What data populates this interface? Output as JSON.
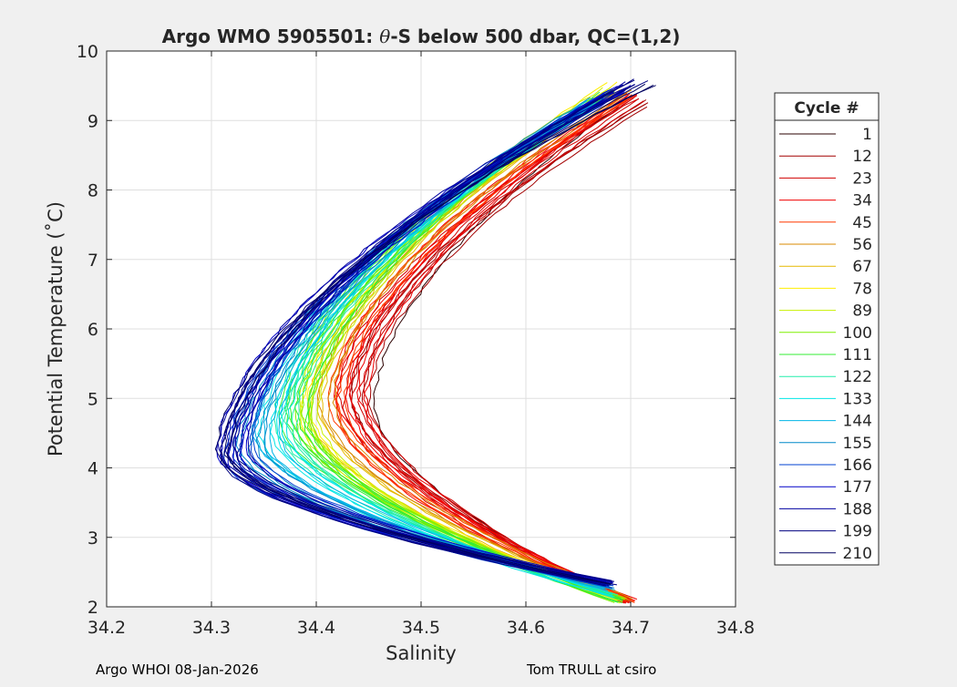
{
  "chart_data": {
    "type": "line",
    "title_prefix": "Argo WMO 5905501: ",
    "title_theta": "θ",
    "title_suffix": "-S below 500 dbar,  QC=(1,2)",
    "xlabel": "Salinity",
    "ylabel": "Potential Temperature (˚C)",
    "xlim": [
      34.2,
      34.8
    ],
    "ylim": [
      2,
      10
    ],
    "xticks": [
      34.2,
      34.3,
      34.4,
      34.5,
      34.6,
      34.7,
      34.8
    ],
    "xtick_labels": [
      "34.2",
      "34.3",
      "34.4",
      "34.5",
      "34.6",
      "34.7",
      "34.8"
    ],
    "yticks": [
      2,
      3,
      4,
      5,
      6,
      7,
      8,
      9,
      10
    ],
    "ytick_labels": [
      "2",
      "3",
      "4",
      "5",
      "6",
      "7",
      "8",
      "9",
      "10"
    ],
    "grid": true,
    "legend_position": "right",
    "legend": {
      "title": "Cycle #",
      "entries": [
        {
          "label": "1",
          "color": "#2b0000"
        },
        {
          "label": "12",
          "color": "#a30000"
        },
        {
          "label": "23",
          "color": "#d10000"
        },
        {
          "label": "34",
          "color": "#f00000"
        },
        {
          "label": "45",
          "color": "#ff3a00"
        },
        {
          "label": "56",
          "color": "#d88a00"
        },
        {
          "label": "67",
          "color": "#e6b800"
        },
        {
          "label": "78",
          "color": "#ffee00"
        },
        {
          "label": "89",
          "color": "#c8f000"
        },
        {
          "label": "100",
          "color": "#7ef000"
        },
        {
          "label": "111",
          "color": "#33ee33"
        },
        {
          "label": "122",
          "color": "#22eeaa"
        },
        {
          "label": "133",
          "color": "#00e6e6"
        },
        {
          "label": "144",
          "color": "#00b4e6"
        },
        {
          "label": "155",
          "color": "#0088c8"
        },
        {
          "label": "166",
          "color": "#0040d0"
        },
        {
          "label": "177",
          "color": "#0000c8"
        },
        {
          "label": "188",
          "color": "#0000a0"
        },
        {
          "label": "199",
          "color": "#000080"
        },
        {
          "label": "210",
          "color": "#000060"
        }
      ]
    },
    "profile_groups": [
      {
        "color": "#2b0000",
        "count": 1,
        "top": [
          34.7,
          9.3
        ],
        "nose": [
          34.455,
          4.9
        ],
        "bottom": [
          34.7,
          2.05
        ]
      },
      {
        "color": "#a30000",
        "count": 4,
        "top": [
          34.715,
          9.25
        ],
        "nose": [
          34.44,
          5.0
        ],
        "bottom": [
          34.7,
          2.05
        ]
      },
      {
        "color": "#d10000",
        "count": 5,
        "top": [
          34.71,
          9.3
        ],
        "nose": [
          34.435,
          5.0
        ],
        "bottom": [
          34.7,
          2.05
        ]
      },
      {
        "color": "#f00000",
        "count": 6,
        "top": [
          34.705,
          9.35
        ],
        "nose": [
          34.43,
          5.0
        ],
        "bottom": [
          34.7,
          2.05
        ]
      },
      {
        "color": "#ff3a00",
        "count": 4,
        "top": [
          34.7,
          9.4
        ],
        "nose": [
          34.42,
          4.95
        ],
        "bottom": [
          34.7,
          2.05
        ]
      },
      {
        "color": "#d88a00",
        "count": 3,
        "top": [
          34.695,
          9.4
        ],
        "nose": [
          34.41,
          4.9
        ],
        "bottom": [
          34.7,
          2.05
        ]
      },
      {
        "color": "#e6b800",
        "count": 3,
        "top": [
          34.69,
          9.45
        ],
        "nose": [
          34.4,
          4.85
        ],
        "bottom": [
          34.69,
          2.05
        ]
      },
      {
        "color": "#ffee00",
        "count": 3,
        "top": [
          34.685,
          9.5
        ],
        "nose": [
          34.39,
          4.8
        ],
        "bottom": [
          34.69,
          2.05
        ]
      },
      {
        "color": "#c8f000",
        "count": 4,
        "top": [
          34.68,
          9.45
        ],
        "nose": [
          34.39,
          4.8
        ],
        "bottom": [
          34.69,
          2.05
        ]
      },
      {
        "color": "#7ef000",
        "count": 5,
        "top": [
          34.68,
          9.4
        ],
        "nose": [
          34.385,
          4.75
        ],
        "bottom": [
          34.69,
          2.05
        ]
      },
      {
        "color": "#33ee33",
        "count": 6,
        "top": [
          34.675,
          9.35
        ],
        "nose": [
          34.38,
          4.7
        ],
        "bottom": [
          34.69,
          2.05
        ]
      },
      {
        "color": "#22eeaa",
        "count": 5,
        "top": [
          34.67,
          9.3
        ],
        "nose": [
          34.37,
          4.6
        ],
        "bottom": [
          34.685,
          2.1
        ]
      },
      {
        "color": "#00e6e6",
        "count": 5,
        "top": [
          34.665,
          9.25
        ],
        "nose": [
          34.36,
          4.5
        ],
        "bottom": [
          34.68,
          2.15
        ]
      },
      {
        "color": "#00b4e6",
        "count": 5,
        "top": [
          34.665,
          9.25
        ],
        "nose": [
          34.35,
          4.4
        ],
        "bottom": [
          34.68,
          2.2
        ]
      },
      {
        "color": "#0088c8",
        "count": 5,
        "top": [
          34.67,
          9.3
        ],
        "nose": [
          34.335,
          4.3
        ],
        "bottom": [
          34.68,
          2.25
        ]
      },
      {
        "color": "#0040d0",
        "count": 6,
        "top": [
          34.68,
          9.4
        ],
        "nose": [
          34.325,
          4.2
        ],
        "bottom": [
          34.68,
          2.25
        ]
      },
      {
        "color": "#0000c8",
        "count": 6,
        "top": [
          34.69,
          9.45
        ],
        "nose": [
          34.32,
          4.2
        ],
        "bottom": [
          34.68,
          2.3
        ]
      },
      {
        "color": "#0000a0",
        "count": 5,
        "top": [
          34.7,
          9.5
        ],
        "nose": [
          34.32,
          4.2
        ],
        "bottom": [
          34.68,
          2.3
        ]
      },
      {
        "color": "#000080",
        "count": 4,
        "top": [
          34.71,
          9.55
        ],
        "nose": [
          34.315,
          4.2
        ],
        "bottom": [
          34.68,
          2.3
        ]
      },
      {
        "color": "#000060",
        "count": 3,
        "top": [
          34.715,
          9.55
        ],
        "nose": [
          34.31,
          4.2
        ],
        "bottom": [
          34.68,
          2.3
        ]
      }
    ]
  },
  "footer": {
    "left": "Argo WHOI 08-Jan-2026",
    "right": "Tom TRULL at csiro"
  }
}
